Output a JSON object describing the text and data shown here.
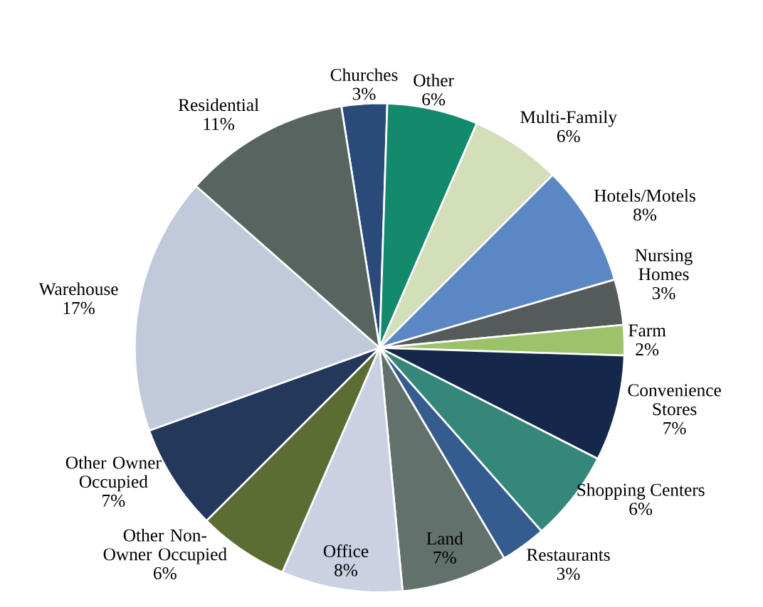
{
  "chart_data": {
    "type": "pie",
    "categories": [
      "Churches",
      "Other",
      "Multi-Family",
      "Hotels/Motels",
      "Nursing Homes",
      "Farm",
      "Convenience Stores",
      "Shopping Centers",
      "Restaurants",
      "Land",
      "Office",
      "Other Non-Owner Occupied",
      "Other Owner Occupied",
      "Warehouse",
      "Residential"
    ],
    "values": [
      3,
      6,
      6,
      8,
      3,
      2,
      7,
      6,
      3,
      7,
      8,
      6,
      7,
      17,
      11
    ],
    "value_labels": [
      "3%",
      "6%",
      "6%",
      "8%",
      "3%",
      "2%",
      "7%",
      "6%",
      "3%",
      "7%",
      "8%",
      "6%",
      "7%",
      "17%",
      "11%"
    ],
    "colors": [
      "#2a4a7a",
      "#128a6b",
      "#d3dfb8",
      "#5b87c5",
      "#555a5a",
      "#9cc26a",
      "#15274a",
      "#358779",
      "#355c8e",
      "#63716c",
      "#c9d1e3",
      "#5a6e34",
      "#24385c",
      "#c1cadb",
      "#58645f"
    ]
  }
}
